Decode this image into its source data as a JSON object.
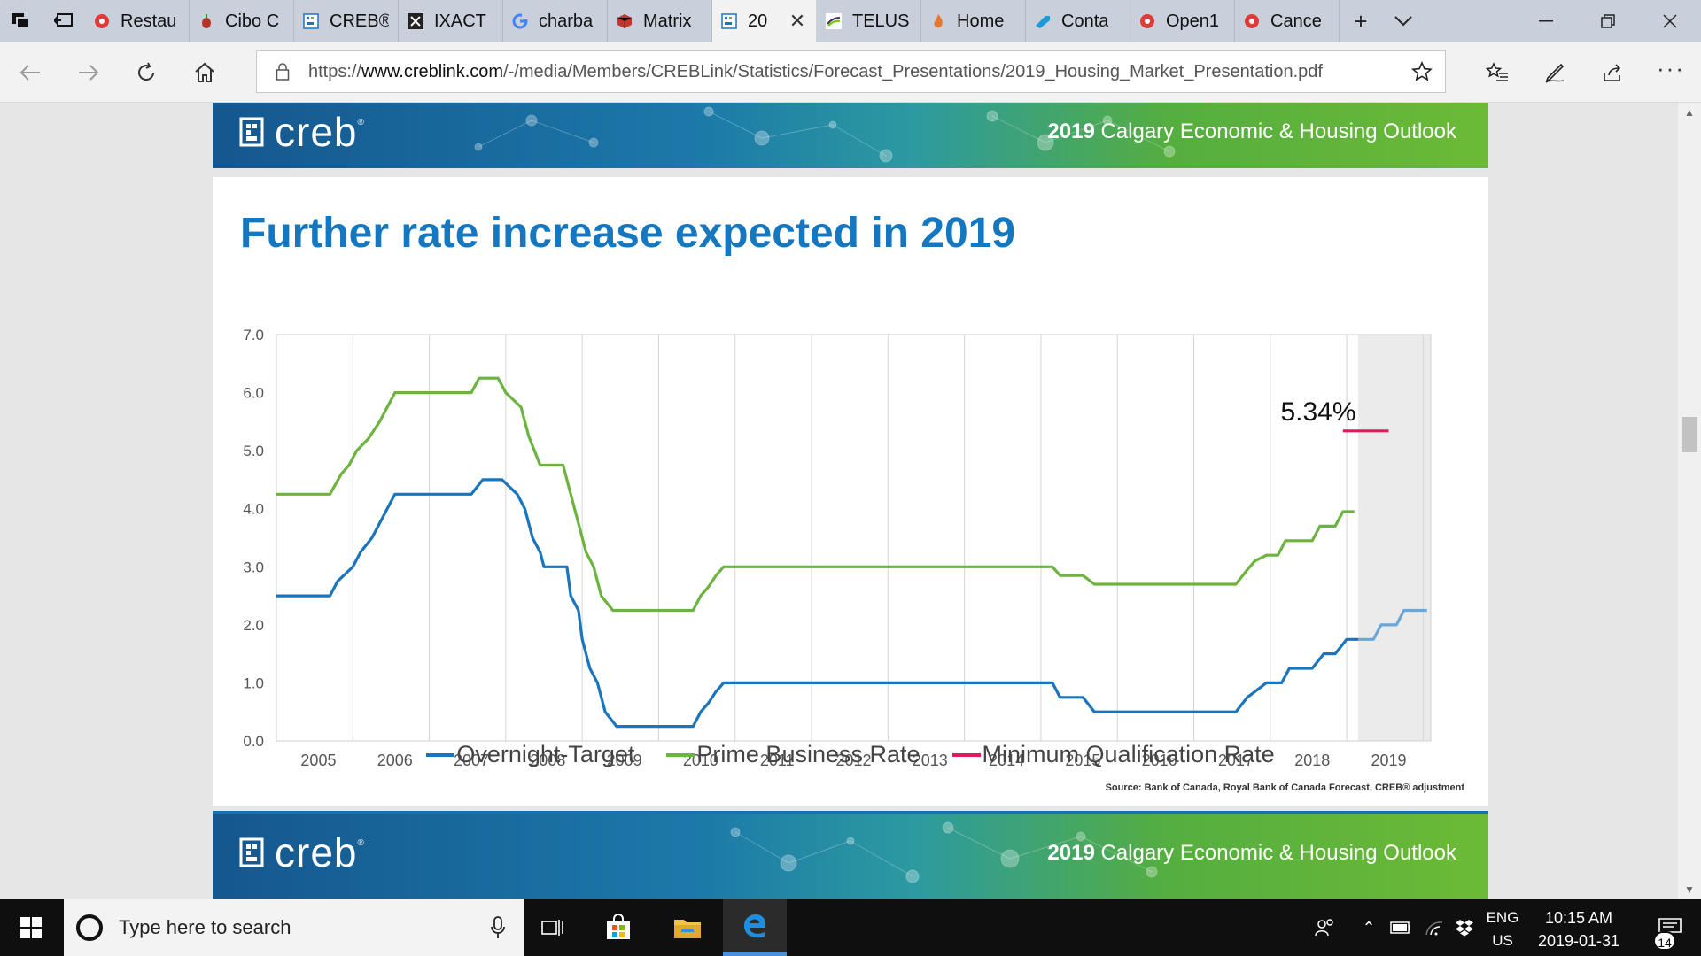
{
  "browser": {
    "tabs": [
      {
        "label": "Restau",
        "icon": "red-dot-icon"
      },
      {
        "label": "Cibo C",
        "icon": "pepper-icon"
      },
      {
        "label": "CREB®",
        "icon": "creb-icon"
      },
      {
        "label": "IXACT",
        "icon": "x-icon"
      },
      {
        "label": "charba",
        "icon": "google-icon"
      },
      {
        "label": "Matrix",
        "icon": "cube-icon"
      },
      {
        "label": "20",
        "icon": "creb-icon",
        "active": true
      },
      {
        "label": "TELUS",
        "icon": "telus-icon"
      },
      {
        "label": "Home",
        "icon": "flame-icon"
      },
      {
        "label": "Conta",
        "icon": "arrow-icon"
      },
      {
        "label": "Open1",
        "icon": "red-dot-icon"
      },
      {
        "label": "Cance",
        "icon": "red-dot-icon"
      }
    ],
    "url_prefix": "https://",
    "url_host": "www.creblink.com",
    "url_path": "/-/media/Members/CREBLink/Statistics/Forecast_Presentations/2019_Housing_Market_Presentation.pdf"
  },
  "slide": {
    "logo_text": "creb",
    "logo_reg": "®",
    "header_year": "2019",
    "header_text": "Calgary Economic & Housing Outlook",
    "title": "Further rate increase expected in 2019",
    "callout": "5.34%",
    "source": "Source: Bank of Canada, Royal Bank of Canada Forecast, CREB® adjustment"
  },
  "chart_data": {
    "type": "line",
    "title": "Further rate increase expected in 2019",
    "xlabel": "",
    "ylabel": "",
    "ylim": [
      0,
      7
    ],
    "xlim": [
      2004.6,
      2019.7
    ],
    "y_ticks": [
      "0.0",
      "1.0",
      "2.0",
      "3.0",
      "4.0",
      "5.0",
      "6.0",
      "7.0"
    ],
    "x_ticks": [
      "2005",
      "2006",
      "2007",
      "2008",
      "2009",
      "2010",
      "2011",
      "2012",
      "2013",
      "2014",
      "2015",
      "2016",
      "2017",
      "2018",
      "2019"
    ],
    "forecast_start": 2018.75,
    "grid": true,
    "legend_position": "bottom",
    "annotation": {
      "text": "5.34%",
      "x": 2018.75,
      "y": 5.34
    },
    "series": [
      {
        "name": "Overnight-Target",
        "color": "#1a75bc",
        "points": [
          [
            2004.6,
            2.5
          ],
          [
            2005.3,
            2.5
          ],
          [
            2005.4,
            2.75
          ],
          [
            2005.6,
            3.0
          ],
          [
            2005.7,
            3.25
          ],
          [
            2005.85,
            3.5
          ],
          [
            2005.95,
            3.75
          ],
          [
            2006.05,
            4.0
          ],
          [
            2006.15,
            4.25
          ],
          [
            2006.5,
            4.25
          ],
          [
            2007.15,
            4.25
          ],
          [
            2007.3,
            4.5
          ],
          [
            2007.55,
            4.5
          ],
          [
            2007.75,
            4.25
          ],
          [
            2007.85,
            4.0
          ],
          [
            2007.95,
            3.5
          ],
          [
            2008.05,
            3.25
          ],
          [
            2008.1,
            3.0
          ],
          [
            2008.4,
            3.0
          ],
          [
            2008.45,
            2.5
          ],
          [
            2008.55,
            2.25
          ],
          [
            2008.6,
            1.75
          ],
          [
            2008.7,
            1.25
          ],
          [
            2008.8,
            1.0
          ],
          [
            2008.9,
            0.5
          ],
          [
            2009.05,
            0.25
          ],
          [
            2010.05,
            0.25
          ],
          [
            2010.15,
            0.5
          ],
          [
            2010.25,
            0.65
          ],
          [
            2010.35,
            0.85
          ],
          [
            2010.45,
            1.0
          ],
          [
            2014.6,
            1.0
          ],
          [
            2014.75,
            1.0
          ],
          [
            2014.85,
            0.75
          ],
          [
            2015.15,
            0.75
          ],
          [
            2015.3,
            0.5
          ],
          [
            2017.15,
            0.5
          ],
          [
            2017.3,
            0.75
          ],
          [
            2017.4,
            0.85
          ],
          [
            2017.55,
            1.0
          ],
          [
            2017.75,
            1.0
          ],
          [
            2017.85,
            1.25
          ],
          [
            2018.15,
            1.25
          ],
          [
            2018.3,
            1.5
          ],
          [
            2018.45,
            1.5
          ],
          [
            2018.6,
            1.75
          ],
          [
            2018.75,
            1.75
          ]
        ],
        "forecast_points": [
          [
            2018.75,
            1.75
          ],
          [
            2018.95,
            1.75
          ],
          [
            2019.05,
            2.0
          ],
          [
            2019.25,
            2.0
          ],
          [
            2019.35,
            2.25
          ],
          [
            2019.65,
            2.25
          ]
        ]
      },
      {
        "name": "Prime Business Rate",
        "color": "#6db33f",
        "points": [
          [
            2004.6,
            4.25
          ],
          [
            2005.3,
            4.25
          ],
          [
            2005.45,
            4.6
          ],
          [
            2005.55,
            4.75
          ],
          [
            2005.65,
            5.0
          ],
          [
            2005.8,
            5.2
          ],
          [
            2005.95,
            5.5
          ],
          [
            2006.05,
            5.75
          ],
          [
            2006.15,
            6.0
          ],
          [
            2007.15,
            6.0
          ],
          [
            2007.25,
            6.25
          ],
          [
            2007.5,
            6.25
          ],
          [
            2007.6,
            6.0
          ],
          [
            2007.8,
            5.75
          ],
          [
            2007.9,
            5.25
          ],
          [
            2008.05,
            4.75
          ],
          [
            2008.35,
            4.75
          ],
          [
            2008.45,
            4.25
          ],
          [
            2008.55,
            3.75
          ],
          [
            2008.65,
            3.25
          ],
          [
            2008.75,
            3.0
          ],
          [
            2008.85,
            2.5
          ],
          [
            2009.0,
            2.25
          ],
          [
            2010.05,
            2.25
          ],
          [
            2010.15,
            2.5
          ],
          [
            2010.25,
            2.65
          ],
          [
            2010.35,
            2.85
          ],
          [
            2010.45,
            3.0
          ],
          [
            2014.75,
            3.0
          ],
          [
            2014.85,
            2.85
          ],
          [
            2015.15,
            2.85
          ],
          [
            2015.3,
            2.7
          ],
          [
            2017.15,
            2.7
          ],
          [
            2017.3,
            2.95
          ],
          [
            2017.4,
            3.1
          ],
          [
            2017.55,
            3.2
          ],
          [
            2017.7,
            3.2
          ],
          [
            2017.8,
            3.45
          ],
          [
            2018.15,
            3.45
          ],
          [
            2018.25,
            3.7
          ],
          [
            2018.45,
            3.7
          ],
          [
            2018.55,
            3.95
          ],
          [
            2018.7,
            3.95
          ]
        ]
      },
      {
        "name": "Minimum Qualification Rate",
        "color": "#e2195b",
        "points": [
          [
            2018.55,
            5.34
          ],
          [
            2019.15,
            5.34
          ]
        ]
      }
    ]
  },
  "taskbar": {
    "search_placeholder": "Type here to search",
    "lang_1": "ENG",
    "lang_2": "US",
    "time": "10:15 AM",
    "date": "2019-01-31",
    "notifications": "14"
  }
}
